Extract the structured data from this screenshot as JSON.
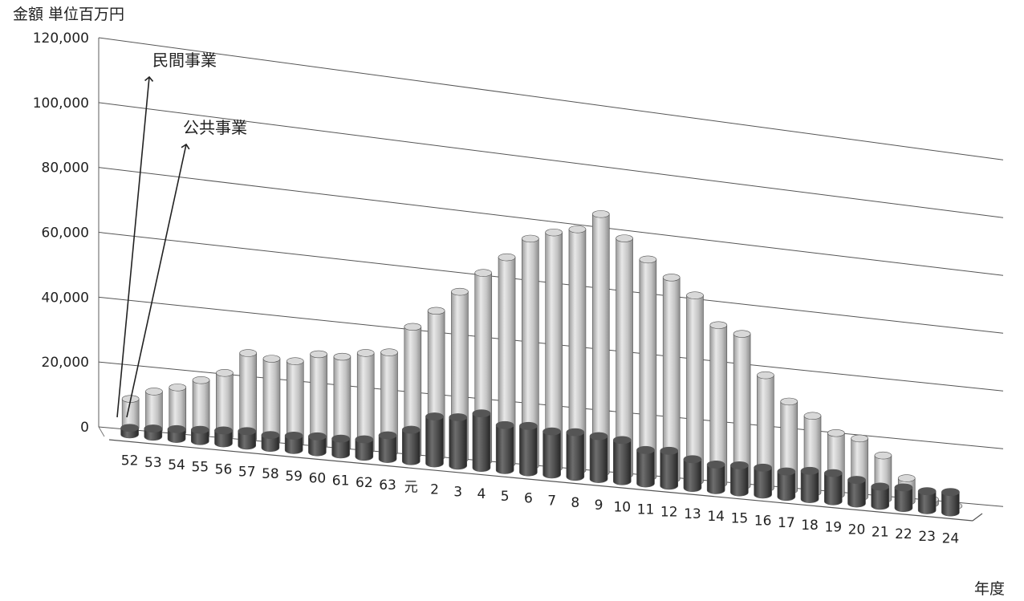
{
  "chart_data": {
    "type": "bar",
    "title": "",
    "unit_label": "金額 単位百万円",
    "xlabel": "年度",
    "ylabel": "",
    "ylim": [
      0,
      120000
    ],
    "y_ticks": [
      "0",
      "20,000",
      "40,000",
      "60,000",
      "80,000",
      "100,000",
      "120,000"
    ],
    "y_tick_values": [
      0,
      20000,
      40000,
      60000,
      80000,
      100000,
      120000
    ],
    "grid": true,
    "categories": [
      "52",
      "53",
      "54",
      "55",
      "56",
      "57",
      "58",
      "59",
      "60",
      "61",
      "62",
      "63",
      "元",
      "2",
      "3",
      "4",
      "5",
      "6",
      "7",
      "8",
      "9",
      "10",
      "11",
      "12",
      "13",
      "14",
      "15",
      "16",
      "17",
      "18",
      "19",
      "20",
      "21",
      "22",
      "23",
      "24"
    ],
    "series": [
      {
        "name": "民間事業",
        "color": "#bdbdbd",
        "values": [
          9000,
          12000,
          14000,
          17000,
          20000,
          27000,
          26000,
          26000,
          29000,
          29000,
          31000,
          32000,
          41000,
          47000,
          54000,
          61000,
          67000,
          74000,
          77000,
          79000,
          85000,
          78000,
          72000,
          67000,
          62000,
          53000,
          51000,
          38000,
          30000,
          26000,
          21000,
          20000,
          15000,
          8000,
          1500,
          0
        ]
      },
      {
        "name": "公共事業",
        "color": "#4a4a4a",
        "values": [
          2000,
          2500,
          3000,
          3500,
          4000,
          4500,
          4000,
          4500,
          5000,
          5000,
          5500,
          7500,
          10000,
          15000,
          15500,
          17500,
          14500,
          15000,
          14000,
          14500,
          14000,
          13500,
          11000,
          11500,
          9500,
          8500,
          9000,
          9000,
          8500,
          9500,
          9500,
          8000,
          6500,
          7000,
          6500,
          7000
        ]
      }
    ],
    "annotations": [
      "民間事業",
      "公共事業"
    ]
  }
}
